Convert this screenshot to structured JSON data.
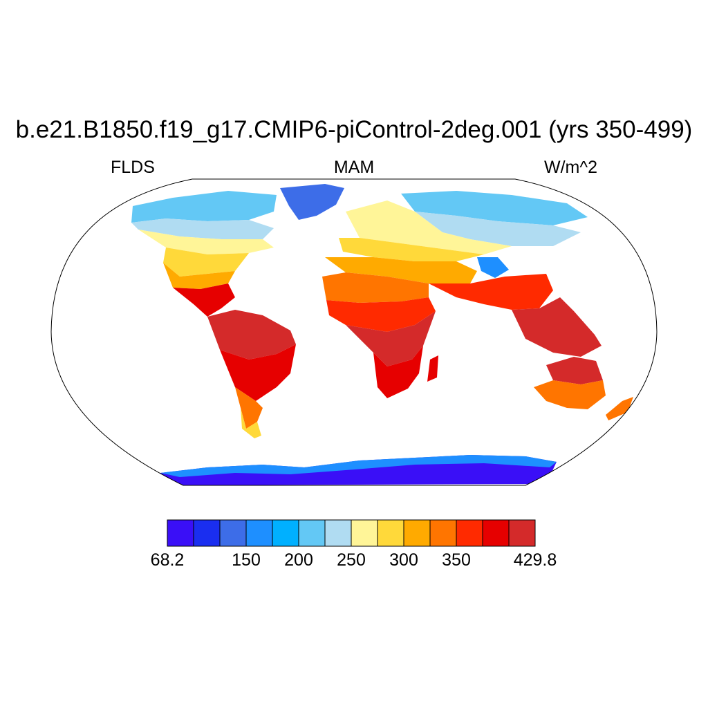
{
  "title": "b.e21.B1850.f19_g17.CMIP6-piControl-2deg.001 (yrs 350-499)",
  "variable": "FLDS",
  "season": "MAM",
  "units": "W/m^2",
  "projection": "Robinson",
  "colorbar": {
    "colors": [
      "#3a0ff7",
      "#1a2ef0",
      "#3d6de8",
      "#1e8fff",
      "#00b0ff",
      "#63c8f5",
      "#b0dcf2",
      "#fff598",
      "#ffd93a",
      "#ffaa00",
      "#ff7500",
      "#ff2a00",
      "#e60000",
      "#d42a2a"
    ],
    "tick_labels": [
      {
        "label": "68.2",
        "slot": 0
      },
      {
        "label": "150",
        "slot": 3
      },
      {
        "label": "200",
        "slot": 5
      },
      {
        "label": "250",
        "slot": 7
      },
      {
        "label": "300",
        "slot": 9
      },
      {
        "label": "350",
        "slot": 11
      },
      {
        "label": "429.8",
        "slot": 14
      }
    ]
  },
  "legend_icon": "colorbar-gradient"
}
